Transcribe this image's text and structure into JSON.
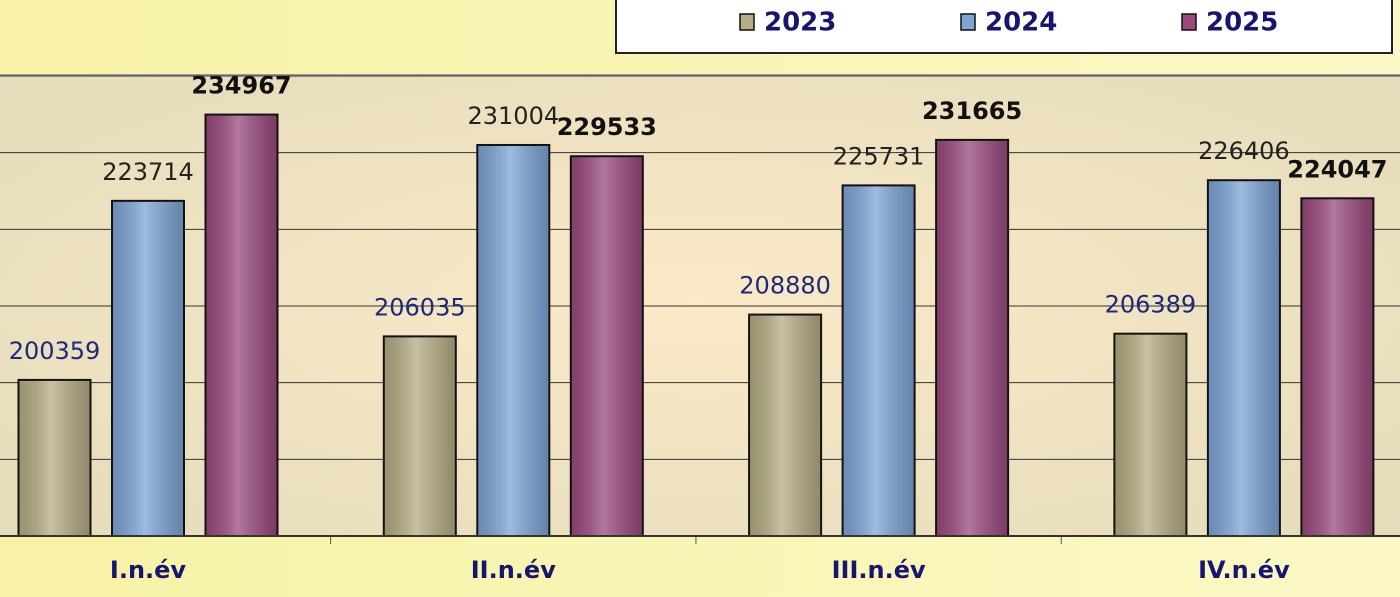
{
  "chart_data": {
    "type": "bar",
    "categories": [
      "I.n.év",
      "II.n.év",
      "III.n.év",
      "IV.n.év"
    ],
    "series": [
      {
        "name": "2023",
        "color": "#b5ad85",
        "values": [
          200359,
          206035,
          208880,
          206389
        ]
      },
      {
        "name": "2024",
        "color": "#7ea5d6",
        "values": [
          223714,
          231004,
          225731,
          226406
        ]
      },
      {
        "name": "2025",
        "color": "#9a4a7d",
        "values": [
          234967,
          229533,
          231665,
          224047
        ]
      }
    ],
    "ylim": [
      180000,
      240000
    ],
    "yticks": [
      180000,
      190000,
      200000,
      210000,
      220000,
      230000,
      240000
    ],
    "grid": true,
    "legend": "top"
  }
}
